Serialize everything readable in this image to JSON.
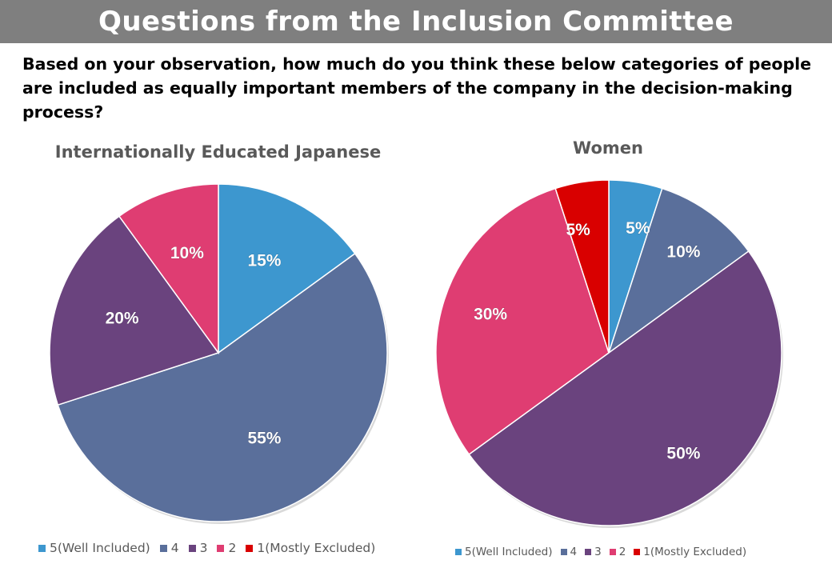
{
  "header": {
    "title": "Questions from the Inclusion Committee",
    "question": "Based on your observation, how much do you think these below categories of people are included as equally important members of the company in the decision-making process?"
  },
  "colors": {
    "5(Well Included)": "#3d97cf",
    "4": "#5a6f9b",
    "3": "#6a437e",
    "2": "#df3d72",
    "1(Mostly Excluded)": "#d90000"
  },
  "chart_data": [
    {
      "type": "pie",
      "title": "Internationally Educated Japanese",
      "categories": [
        "5(Well Included)",
        "4",
        "3",
        "2",
        "1(Mostly Excluded)"
      ],
      "values": [
        15,
        55,
        20,
        10,
        0
      ],
      "data_labels": [
        "15%",
        "55%",
        "20%",
        "10%",
        ""
      ],
      "legend": "bottom"
    },
    {
      "type": "pie",
      "title": "Women",
      "categories": [
        "5(Well Included)",
        "4",
        "3",
        "2",
        "1(Mostly Excluded)"
      ],
      "values": [
        5,
        10,
        50,
        30,
        5
      ],
      "data_labels": [
        "5%",
        "10%",
        "50%",
        "30%",
        "5%"
      ],
      "legend": "bottom"
    }
  ]
}
